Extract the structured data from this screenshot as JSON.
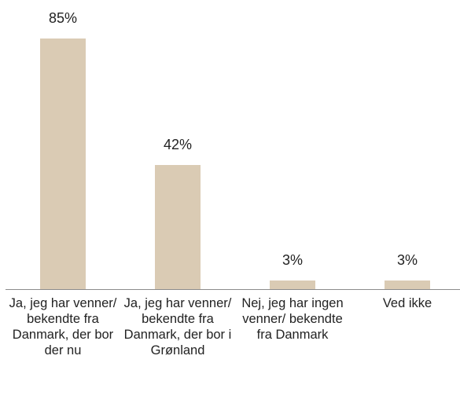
{
  "chart_data": {
    "type": "bar",
    "categories": [
      "Ja, jeg har venner/ bekendte fra Danmark, der bor der nu",
      "Ja, jeg har venner/ bekendte fra Danmark, der bor i Grønland",
      "Nej, jeg har ingen venner/ bekendte fra Danmark",
      "Ved ikke"
    ],
    "values": [
      85,
      42,
      3,
      3
    ],
    "value_labels": [
      "85%",
      "42%",
      "3%",
      "3%"
    ],
    "color": "#dacbb4"
  }
}
